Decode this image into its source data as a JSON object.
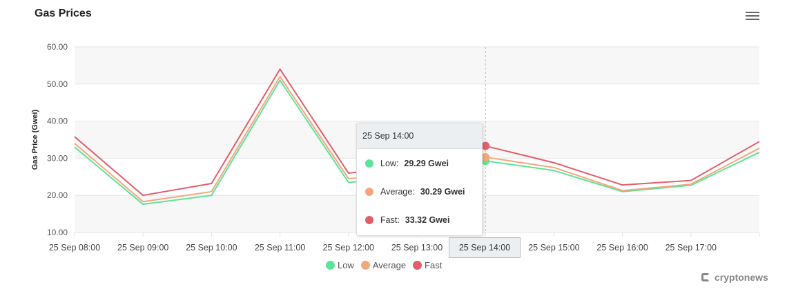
{
  "header": {
    "title": "Gas Prices",
    "menu_icon": "hamburger-menu-icon"
  },
  "chart_data": {
    "type": "line",
    "title": "Gas Prices",
    "xlabel": "",
    "ylabel": "Gas Price (Gwei)",
    "ylim": [
      10,
      60
    ],
    "yticks": [
      "10.00",
      "20.00",
      "30.00",
      "40.00",
      "50.00",
      "60.00"
    ],
    "categories": [
      "25 Sep 08:00",
      "25 Sep 09:00",
      "25 Sep 10:00",
      "25 Sep 11:00",
      "25 Sep 12:00",
      "25 Sep 13:00",
      "25 Sep 14:00",
      "25 Sep 15:00",
      "25 Sep 16:00",
      "25 Sep 17:00",
      ""
    ],
    "grid": true,
    "legend_position": "bottom",
    "series": [
      {
        "name": "Low",
        "color": "#5ee39a",
        "values": [
          33.0,
          17.6,
          20.0,
          51.0,
          23.5,
          25.0,
          29.29,
          26.7,
          21.0,
          22.7,
          31.6
        ]
      },
      {
        "name": "Average",
        "color": "#f4a77a",
        "values": [
          34.0,
          18.3,
          21.0,
          52.0,
          24.5,
          26.0,
          30.29,
          27.5,
          21.3,
          23.0,
          32.7
        ]
      },
      {
        "name": "Fast",
        "color": "#e35d6a",
        "values": [
          35.8,
          20.0,
          23.2,
          54.0,
          26.0,
          28.0,
          33.32,
          28.8,
          22.8,
          24.0,
          34.5
        ]
      }
    ],
    "tooltip": {
      "header": "25 Sep 14:00",
      "rows": [
        {
          "label": "Low:",
          "value": "29.29 Gwei"
        },
        {
          "label": "Average:",
          "value": "30.29 Gwei"
        },
        {
          "label": "Fast:",
          "value": "33.32 Gwei"
        }
      ]
    },
    "crosshair_label": "25 Sep 14:00",
    "hover_index": 6
  },
  "brand": {
    "name": "cryptonews"
  }
}
